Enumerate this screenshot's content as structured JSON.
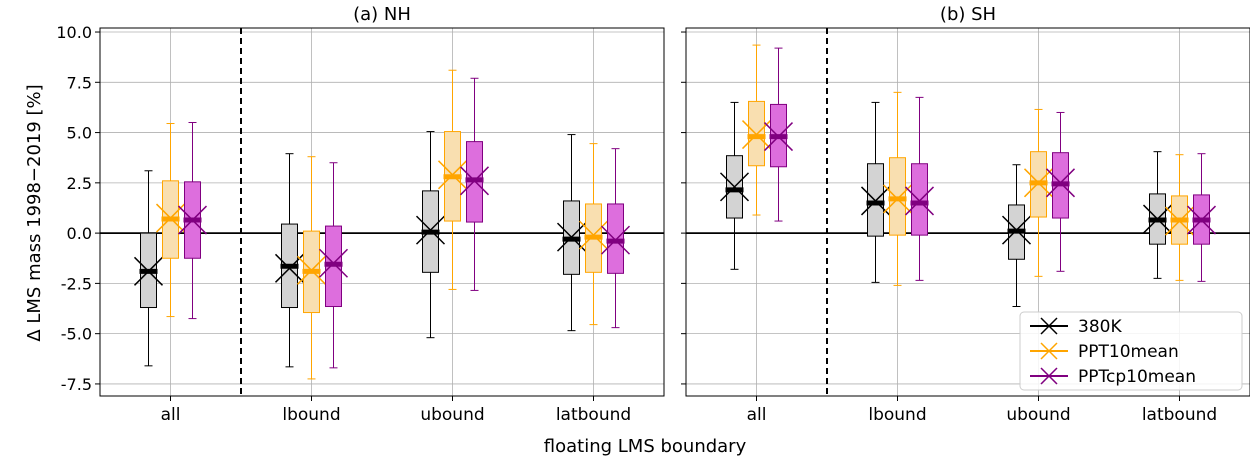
{
  "figure": {
    "ylabel": "Δ LMS mass 1998−2019  [%]",
    "xlabel": "floating LMS boundary"
  },
  "legend": {
    "entries": [
      {
        "label": "380K",
        "color": "#000000"
      },
      {
        "label": "PPT10mean",
        "color": "#ffa500"
      },
      {
        "label": "PPTcp10mean",
        "color": "#800080"
      }
    ]
  },
  "colors": {
    "box_fills": [
      "#d3d3d3",
      "#f9dfb0",
      "#dd6edd"
    ],
    "edges": [
      "#000000",
      "#ffa500",
      "#800080"
    ],
    "grid": "#b0b0b0"
  },
  "chart_data": [
    {
      "type": "box",
      "title": "(a) NH",
      "categories": [
        "all",
        "lbound",
        "ubound",
        "latbound"
      ],
      "ylim": [
        -8.1,
        10.2
      ],
      "yticks": [
        -7.5,
        -5.0,
        -2.5,
        0.0,
        2.5,
        5.0,
        7.5,
        10.0
      ],
      "grid": true,
      "vline_after": "all",
      "series": [
        {
          "name": "380K",
          "stats": [
            {
              "whislo": -6.6,
              "q1": -3.7,
              "median": -1.9,
              "mean": -1.9,
              "q3": 0.0,
              "whishi": 3.1
            },
            {
              "whislo": -6.65,
              "q1": -3.7,
              "median": -1.65,
              "mean": -1.75,
              "q3": 0.45,
              "whishi": 3.95
            },
            {
              "whislo": -5.2,
              "q1": -1.95,
              "median": 0.05,
              "mean": 0.15,
              "q3": 2.1,
              "whishi": 5.05
            },
            {
              "whislo": -4.85,
              "q1": -2.05,
              "median": -0.3,
              "mean": -0.2,
              "q3": 1.6,
              "whishi": 4.9
            }
          ]
        },
        {
          "name": "PPT10mean",
          "stats": [
            {
              "whislo": -4.15,
              "q1": -1.25,
              "median": 0.7,
              "mean": 0.75,
              "q3": 2.6,
              "whishi": 5.45
            },
            {
              "whislo": -7.25,
              "q1": -3.95,
              "median": -1.9,
              "mean": -1.85,
              "q3": 0.1,
              "whishi": 3.8
            },
            {
              "whislo": -2.8,
              "q1": 0.6,
              "median": 2.8,
              "mean": 2.9,
              "q3": 5.05,
              "whishi": 8.1
            },
            {
              "whislo": -4.55,
              "q1": -1.95,
              "median": -0.2,
              "mean": -0.1,
              "q3": 1.45,
              "whishi": 4.45
            }
          ]
        },
        {
          "name": "PPTcp10mean",
          "stats": [
            {
              "whislo": -4.25,
              "q1": -1.25,
              "median": 0.65,
              "mean": 0.65,
              "q3": 2.55,
              "whishi": 5.5
            },
            {
              "whislo": -6.7,
              "q1": -3.65,
              "median": -1.55,
              "mean": -1.5,
              "q3": 0.35,
              "whishi": 3.5
            },
            {
              "whislo": -2.85,
              "q1": 0.55,
              "median": 2.65,
              "mean": 2.6,
              "q3": 4.55,
              "whishi": 7.7
            },
            {
              "whislo": -4.7,
              "q1": -2.0,
              "median": -0.4,
              "mean": -0.35,
              "q3": 1.45,
              "whishi": 4.2
            }
          ]
        }
      ]
    },
    {
      "type": "box",
      "title": "(b) SH",
      "categories": [
        "all",
        "lbound",
        "ubound",
        "latbound"
      ],
      "ylim": [
        -8.1,
        10.2
      ],
      "yticks": [
        -7.5,
        -5.0,
        -2.5,
        0.0,
        2.5,
        5.0,
        7.5,
        10.0
      ],
      "grid": true,
      "vline_after": "all",
      "legend_position": "lower-right",
      "series": [
        {
          "name": "380K",
          "stats": [
            {
              "whislo": -1.8,
              "q1": 0.75,
              "median": 2.15,
              "mean": 2.3,
              "q3": 3.85,
              "whishi": 6.5
            },
            {
              "whislo": -2.45,
              "q1": -0.15,
              "median": 1.5,
              "mean": 1.6,
              "q3": 3.45,
              "whishi": 6.5
            },
            {
              "whislo": -3.65,
              "q1": -1.3,
              "median": 0.1,
              "mean": 0.15,
              "q3": 1.4,
              "whishi": 3.4
            },
            {
              "whislo": -2.25,
              "q1": -0.55,
              "median": 0.65,
              "mean": 0.7,
              "q3": 1.95,
              "whishi": 4.05
            }
          ]
        },
        {
          "name": "PPT10mean",
          "stats": [
            {
              "whislo": 0.9,
              "q1": 3.35,
              "median": 4.8,
              "mean": 4.9,
              "q3": 6.55,
              "whishi": 9.35
            },
            {
              "whislo": -2.6,
              "q1": -0.1,
              "median": 1.7,
              "mean": 1.7,
              "q3": 3.75,
              "whishi": 7.0
            },
            {
              "whislo": -2.15,
              "q1": 0.8,
              "median": 2.5,
              "mean": 2.5,
              "q3": 4.05,
              "whishi": 6.15
            },
            {
              "whislo": -2.35,
              "q1": -0.55,
              "median": 0.65,
              "mean": 0.6,
              "q3": 1.85,
              "whishi": 3.9
            }
          ]
        },
        {
          "name": "PPTcp10mean",
          "stats": [
            {
              "whislo": 0.6,
              "q1": 3.3,
              "median": 4.8,
              "mean": 4.8,
              "q3": 6.4,
              "whishi": 9.2
            },
            {
              "whislo": -2.35,
              "q1": -0.1,
              "median": 1.5,
              "mean": 1.6,
              "q3": 3.45,
              "whishi": 6.75
            },
            {
              "whislo": -1.9,
              "q1": 0.75,
              "median": 2.45,
              "mean": 2.5,
              "q3": 4.0,
              "whishi": 6.0
            },
            {
              "whislo": -2.4,
              "q1": -0.55,
              "median": 0.65,
              "mean": 0.65,
              "q3": 1.9,
              "whishi": 3.95
            }
          ]
        }
      ]
    }
  ]
}
